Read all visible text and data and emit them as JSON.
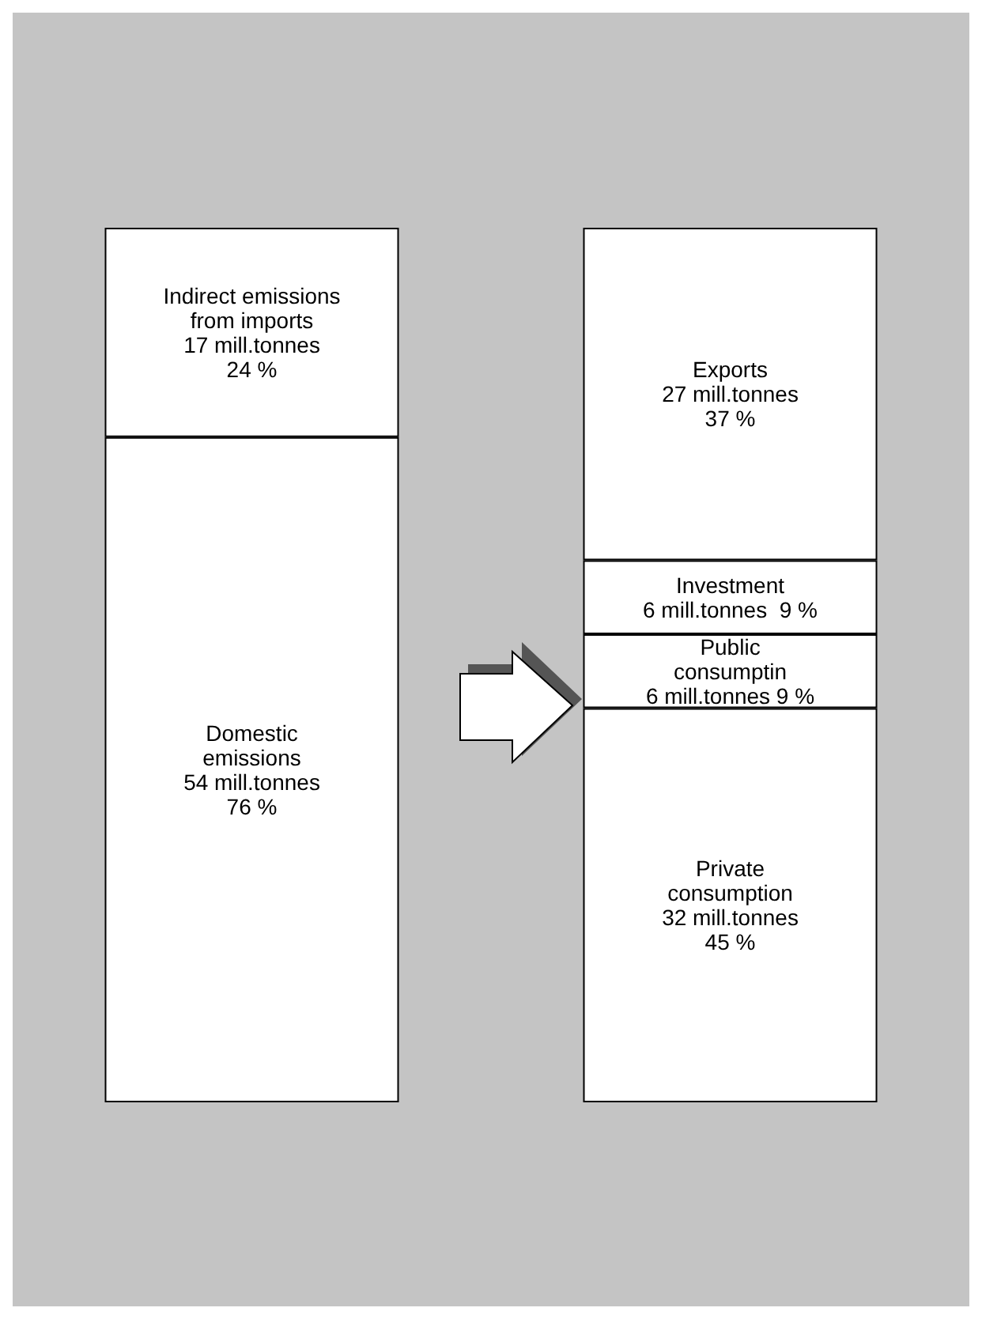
{
  "chart_data": {
    "type": "bar",
    "stacked": true,
    "categories": [
      null,
      null
    ],
    "series": [
      {
        "color": "#ffffff",
        "values": [
          54,
          null
        ],
        "value_labels": [
          "Domestic\nemissions\n54 mill.tonnes\n76 %",
          null
        ]
      },
      {
        "color": "#ffffff",
        "values": [
          17,
          null
        ],
        "value_labels": [
          "Indirect emissions\nfrom imports\n17 mill.tonnes\n24 %",
          null
        ]
      },
      {
        "color": "#ffffff",
        "values": [
          null,
          32
        ],
        "value_labels": [
          null,
          "Private\nconsumption\n32 mill.tonnes\n45 %"
        ]
      },
      {
        "color": "#ffffff",
        "values": [
          null,
          6
        ],
        "value_labels": [
          null,
          "Public\nconsumptin\n6 mill.tonnes 9 %"
        ]
      },
      {
        "color": "#ffffff",
        "values": [
          null,
          6
        ],
        "value_labels": [
          null,
          "Investment\n6 mill.tonnes  9 %"
        ]
      },
      {
        "color": "#ffffff",
        "values": [
          null,
          27
        ],
        "value_labels": [
          null,
          "Exports\n27 mill.tonnes\n37 %"
        ]
      }
    ]
  }
}
